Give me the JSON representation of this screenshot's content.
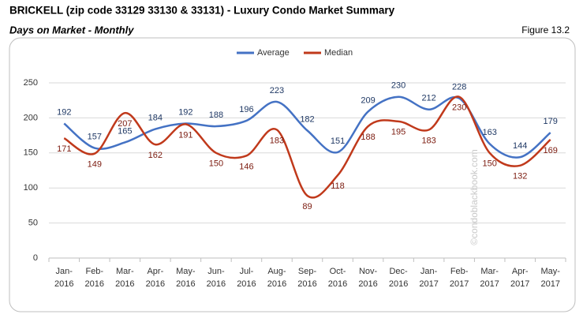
{
  "chart_data": {
    "type": "line",
    "title": "BRICKELL (zip code 33129 33130 & 33131) - Luxury Condo Market Summary",
    "subtitle": "Days on Market - Monthly",
    "figure_label": "Figure 13.2",
    "watermark": "©condoblackbook.com",
    "categories": [
      "Jan-2016",
      "Feb-2016",
      "Mar-2016",
      "Apr-2016",
      "May-2016",
      "Jun-2016",
      "Jul-2016",
      "Aug-2016",
      "Sep-2016",
      "Oct-2016",
      "Nov-2016",
      "Dec-2016",
      "Jan-2017",
      "Feb-2017",
      "Mar-2017",
      "Apr-2017",
      "May-2017"
    ],
    "series": [
      {
        "name": "Average",
        "color": "#4472c4",
        "values": [
          192,
          157,
          165,
          184,
          192,
          188,
          196,
          223,
          182,
          151,
          209,
          230,
          212,
          228,
          163,
          144,
          179
        ]
      },
      {
        "name": "Median",
        "color": "#c0391b",
        "values": [
          171,
          149,
          207,
          162,
          191,
          150,
          146,
          183,
          89,
          118,
          188,
          195,
          183,
          230,
          150,
          132,
          169
        ]
      }
    ],
    "ylim": [
      0,
      250
    ],
    "yticks": [
      0,
      50,
      100,
      150,
      200,
      250
    ],
    "grid": true,
    "legend": "top"
  }
}
